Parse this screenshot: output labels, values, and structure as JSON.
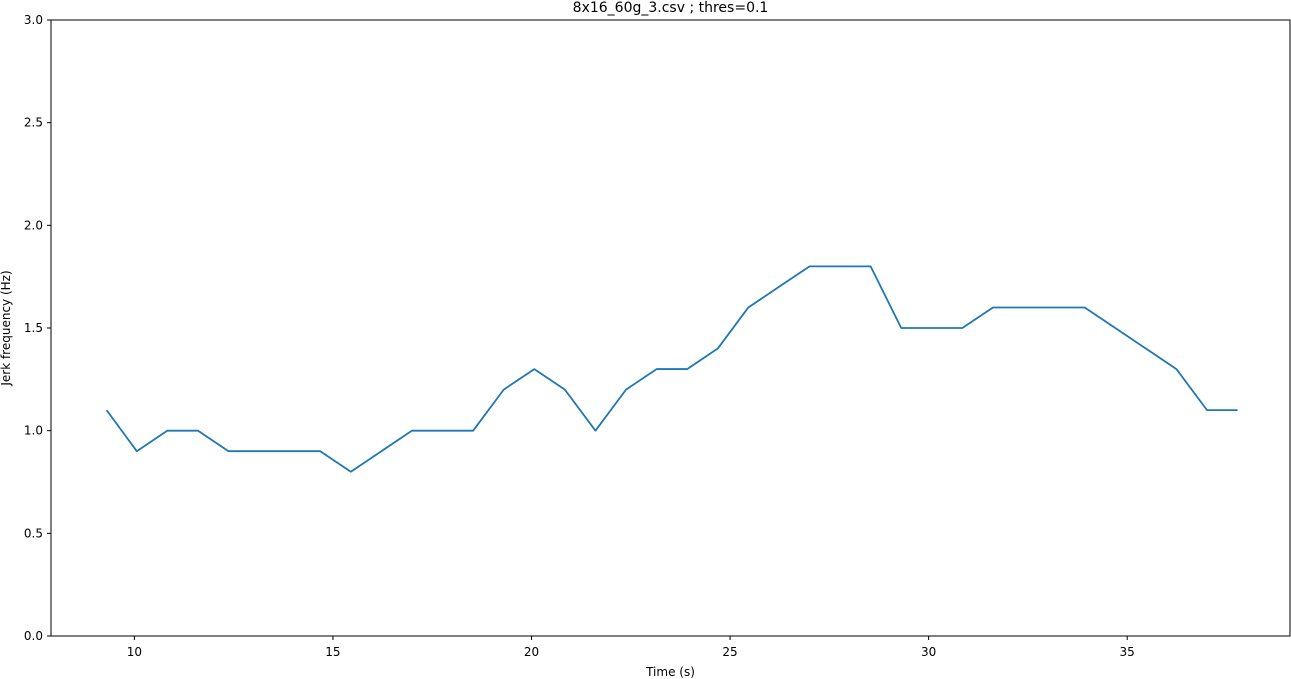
{
  "chart_data": {
    "type": "line",
    "title": "8x16_60g_3.csv ; thres=0.1",
    "xlabel": "Time (s)",
    "ylabel": "Jerk frequency (Hz)",
    "xlim": [
      7.9,
      39.1
    ],
    "ylim": [
      0.0,
      3.0
    ],
    "xticks": [
      10,
      15,
      20,
      25,
      30,
      35
    ],
    "yticks": [
      0.0,
      0.5,
      1.0,
      1.5,
      2.0,
      2.5,
      3.0
    ],
    "grid": false,
    "series": [
      {
        "color": "#1f77b4",
        "x": [
          9.3,
          10.06,
          10.83,
          11.6,
          12.37,
          13.14,
          13.91,
          14.68,
          15.45,
          16.22,
          16.99,
          17.76,
          18.53,
          19.3,
          20.07,
          20.84,
          21.61,
          22.38,
          23.15,
          23.92,
          24.69,
          25.46,
          26.23,
          27.0,
          27.77,
          28.54,
          29.31,
          30.08,
          30.85,
          31.62,
          32.39,
          33.16,
          33.93,
          34.7,
          35.47,
          36.24,
          37.01,
          37.78
        ],
        "y": [
          1.1,
          0.9,
          1.0,
          1.0,
          0.9,
          0.9,
          0.9,
          0.9,
          0.8,
          0.9,
          1.0,
          1.0,
          1.0,
          1.2,
          1.3,
          1.2,
          1.0,
          1.2,
          1.3,
          1.3,
          1.4,
          1.6,
          1.7,
          1.8,
          1.8,
          1.8,
          1.5,
          1.5,
          1.5,
          1.6,
          1.6,
          1.6,
          1.6,
          1.5,
          1.4,
          1.3,
          1.1,
          1.1
        ]
      }
    ]
  }
}
